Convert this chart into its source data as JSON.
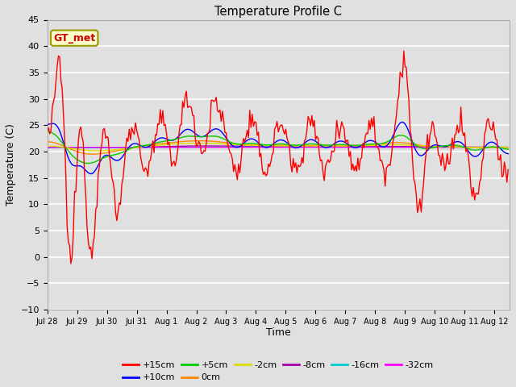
{
  "title": "Temperature Profile C",
  "xlabel": "Time",
  "ylabel": "Temperature (C)",
  "ylim": [
    -10,
    45
  ],
  "yticks": [
    -10,
    -5,
    0,
    5,
    10,
    15,
    20,
    25,
    30,
    35,
    40,
    45
  ],
  "xtick_labels": [
    "Jul 28",
    "Jul 29",
    "Jul 30",
    "Jul 31",
    "Aug 1",
    "Aug 2",
    "Aug 3",
    "Aug 4",
    "Aug 5",
    "Aug 6",
    "Aug 7",
    "Aug 8",
    "Aug 9",
    "Aug 10",
    "Aug 11",
    "Aug 12"
  ],
  "n_days": 15.5,
  "legend_label_box": "GT_met",
  "series_colors": {
    "+15cm": "#ff0000",
    "+10cm": "#0000ff",
    "+5cm": "#00cc00",
    "0cm": "#ff8800",
    "-2cm": "#dddd00",
    "-8cm": "#aa00aa",
    "-16cm": "#00cccc",
    "-32cm": "#ff00ff"
  },
  "background_color": "#e0e0e0",
  "grid_color": "#ffffff",
  "figsize": [
    6.4,
    4.8
  ],
  "dpi": 100
}
